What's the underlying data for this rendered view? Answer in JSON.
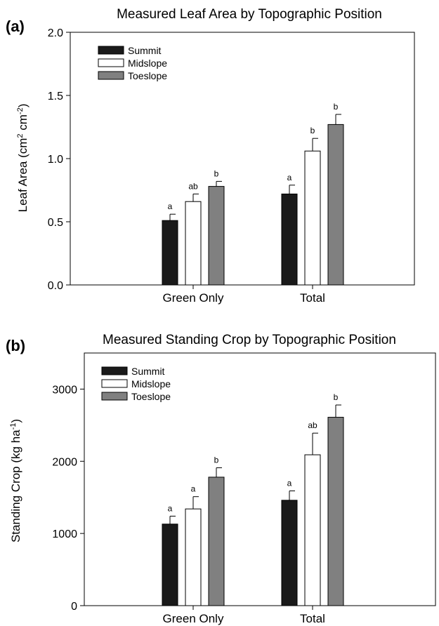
{
  "chart_data": [
    {
      "type": "bar",
      "panel_label": "(a)",
      "title": "Measured Leaf Area by Topographic Position",
      "ylabel": "Leaf Area (cm² cm⁻²)",
      "ylim": [
        0,
        2.0
      ],
      "yticks": [
        "0.0",
        "0.5",
        "1.0",
        "1.5",
        "2.0"
      ],
      "ytick_values": [
        0,
        0.5,
        1.0,
        1.5,
        2.0
      ],
      "categories": [
        "Green Only",
        "Total"
      ],
      "legend_position": "top-left",
      "series": [
        {
          "name": "Summit",
          "color": "#1a1a1a",
          "values": [
            0.51,
            0.72
          ],
          "errors": [
            0.05,
            0.07
          ],
          "sig": [
            "a",
            "a"
          ]
        },
        {
          "name": "Midslope",
          "color": "#ffffff",
          "values": [
            0.66,
            1.06
          ],
          "errors": [
            0.06,
            0.1
          ],
          "sig": [
            "ab",
            "b"
          ]
        },
        {
          "name": "Toeslope",
          "color": "#808080",
          "values": [
            0.78,
            1.27
          ],
          "errors": [
            0.04,
            0.08
          ],
          "sig": [
            "b",
            "b"
          ]
        }
      ]
    },
    {
      "type": "bar",
      "panel_label": "(b)",
      "title": "Measured Standing Crop by Topographic Position",
      "ylabel": "Standing Crop (kg ha⁻¹)",
      "ylim": [
        0,
        3500
      ],
      "yticks": [
        "0",
        "1000",
        "2000",
        "3000"
      ],
      "ytick_values": [
        0,
        1000,
        2000,
        3000
      ],
      "categories": [
        "Green Only",
        "Total"
      ],
      "legend_position": "top-left",
      "series": [
        {
          "name": "Summit",
          "color": "#1a1a1a",
          "values": [
            1130,
            1460
          ],
          "errors": [
            110,
            130
          ],
          "sig": [
            "a",
            "a"
          ]
        },
        {
          "name": "Midslope",
          "color": "#ffffff",
          "values": [
            1340,
            2090
          ],
          "errors": [
            170,
            300
          ],
          "sig": [
            "a",
            "ab"
          ]
        },
        {
          "name": "Toeslope",
          "color": "#808080",
          "values": [
            1780,
            2610
          ],
          "errors": [
            130,
            170
          ],
          "sig": [
            "b",
            "b"
          ]
        }
      ]
    }
  ]
}
